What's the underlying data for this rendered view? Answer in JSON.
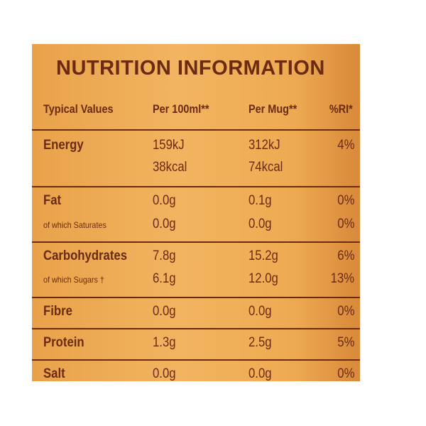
{
  "title": "NUTRITION INFORMATION",
  "columns": [
    "Typical Values",
    "Per 100ml**",
    "Per Mug**",
    "%RI*"
  ],
  "groups": [
    {
      "rows": [
        {
          "label": "Energy",
          "per100": "159kJ",
          "permug": "312kJ",
          "ri": "4%"
        },
        {
          "per100": "38kcal",
          "permug": "74kcal"
        }
      ]
    },
    {
      "rows": [
        {
          "label": "Fat",
          "per100": "0.0g",
          "permug": "0.1g",
          "ri": "0%"
        },
        {
          "sublabel": "of which Saturates",
          "per100": "0.0g",
          "permug": "0.0g",
          "ri": "0%"
        }
      ]
    },
    {
      "rows": [
        {
          "label": "Carbohydrates",
          "per100": "7.8g",
          "permug": "15.2g",
          "ri": "6%"
        },
        {
          "sublabel": "of which Sugars †",
          "per100": "6.1g",
          "permug": "12.0g",
          "ri": "13%"
        }
      ]
    },
    {
      "rows": [
        {
          "label": "Fibre",
          "per100": "0.0g",
          "permug": "0.0g",
          "ri": "0%"
        }
      ]
    },
    {
      "rows": [
        {
          "label": "Protein",
          "per100": "1.3g",
          "permug": "2.5g",
          "ri": "5%"
        }
      ]
    },
    {
      "rows": [
        {
          "label": "Salt",
          "per100": "0.0g",
          "permug": "0.0g",
          "ri": "0%"
        }
      ]
    }
  ]
}
